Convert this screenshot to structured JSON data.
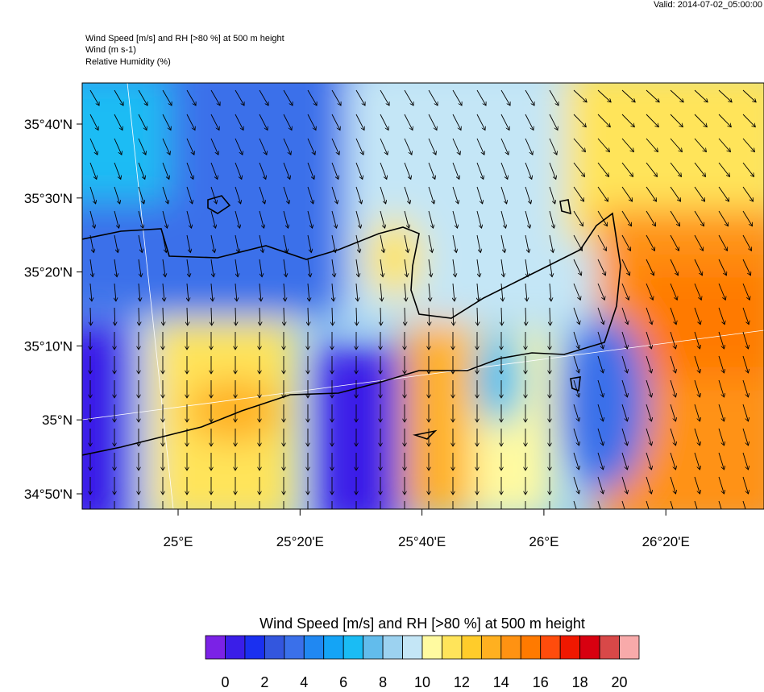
{
  "header": {
    "valid": "Valid: 2014-07-02_05:00:00",
    "lines": [
      "Wind Speed [m/s] and RH [>80 %] at 500 m height",
      "Wind   (m s-1)",
      "Relative Humidity   (%)"
    ]
  },
  "map": {
    "lat_labels": [
      "35°40'N",
      "35°30'N",
      "35°20'N",
      "35°10'N",
      "35°N",
      "34°50'N"
    ],
    "lon_labels": [
      "25°E",
      "25°20'E",
      "25°40'E",
      "26°E",
      "26°20'E"
    ]
  },
  "colorbar": {
    "title": "Wind Speed [m/s] and RH [>80 %] at 500 m height",
    "colors": [
      "#7b22e6",
      "#3a1ee8",
      "#1a30f0",
      "#3356de",
      "#3a70ea",
      "#2088f2",
      "#14a4f6",
      "#1abcf4",
      "#62bcec",
      "#9cd2f0",
      "#c4e6f6",
      "#fffaa0",
      "#ffe45a",
      "#ffcc2a",
      "#ffb020",
      "#ff9212",
      "#ff7a00",
      "#ff4c0c",
      "#f01800",
      "#d80010",
      "#d84848",
      "#f8aaaa"
    ],
    "ticks": [
      0,
      2,
      4,
      6,
      8,
      10,
      12,
      14,
      16,
      18,
      20
    ]
  }
}
